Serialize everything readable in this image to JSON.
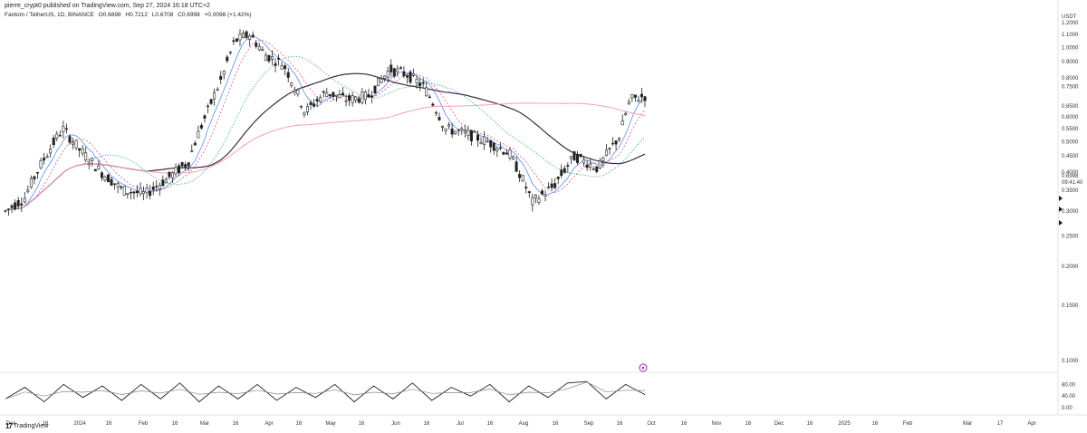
{
  "header": {
    "published_line": "pierre_crypt0 published on TradingView.com, Sep 27, 2024 16:18 UTC+2",
    "symbol": "Fantom / TetherUS, 1D, BINANCE",
    "open": "O0.6898",
    "high": "H0.7212",
    "low": "L0.6708",
    "close": "C0.6998",
    "change": "+0.0098 (+1.42%)"
  },
  "price_axis": {
    "currency": "USDT",
    "current_price": "0.6998",
    "countdown": "09:41:40",
    "ticks": [
      "1.2000",
      "1.1000",
      "1.0000",
      "0.9000",
      "0.8000",
      "0.7500",
      "0.6500",
      "0.6000",
      "0.5500",
      "0.5000",
      "0.4500",
      "0.4000",
      "0.3500",
      "0.3000",
      "0.2500",
      "0.2000",
      "0.1500",
      "0.1000"
    ]
  },
  "oscillator_axis": {
    "ticks": [
      "80.00",
      "40.00",
      "0.00"
    ]
  },
  "time_axis": {
    "labels": [
      "Dec",
      "16",
      "2024",
      "16",
      "Feb",
      "16",
      "Mar",
      "16",
      "Apr",
      "16",
      "May",
      "16",
      "Jun",
      "16",
      "Jul",
      "16",
      "Aug",
      "16",
      "Sep",
      "16",
      "Oct",
      "16",
      "Nov",
      "16",
      "Dec",
      "16",
      "2025",
      "16",
      "Feb",
      "Mar",
      "17",
      "Apr"
    ]
  },
  "chart_data": {
    "type": "line",
    "title": "",
    "xlabel": "",
    "ylabel": "",
    "ylim": [
      0.08,
      1.25
    ],
    "x": [
      "2023-12-01",
      "2023-12-10",
      "2023-12-20",
      "2023-12-28",
      "2024-01-05",
      "2024-01-15",
      "2024-01-25",
      "2024-02-05",
      "2024-02-15",
      "2024-02-25",
      "2024-03-05",
      "2024-03-12",
      "2024-03-18",
      "2024-03-25",
      "2024-04-01",
      "2024-04-10",
      "2024-04-20",
      "2024-04-30",
      "2024-05-10",
      "2024-05-20",
      "2024-05-30",
      "2024-06-07",
      "2024-06-15",
      "2024-06-25",
      "2024-07-05",
      "2024-07-15",
      "2024-07-25",
      "2024-08-05",
      "2024-08-15",
      "2024-08-25",
      "2024-09-05",
      "2024-09-15",
      "2024-09-20",
      "2024-09-27"
    ],
    "series": [
      {
        "values": [
          0.3,
          0.33,
          0.45,
          0.55,
          0.47,
          0.4,
          0.35,
          0.34,
          0.38,
          0.43,
          0.62,
          0.8,
          1.05,
          1.1,
          0.95,
          0.88,
          0.62,
          0.72,
          0.68,
          0.7,
          0.85,
          0.82,
          0.75,
          0.55,
          0.53,
          0.5,
          0.46,
          0.32,
          0.36,
          0.45,
          0.41,
          0.52,
          0.68,
          0.7
        ]
      }
    ],
    "oscillator": {
      "ylim": [
        0,
        100
      ],
      "values": [
        30,
        70,
        20,
        80,
        35,
        75,
        25,
        80,
        30,
        85,
        20,
        75,
        30,
        80,
        25,
        70,
        35,
        80,
        20,
        75,
        30,
        85,
        25,
        70,
        40,
        80,
        20,
        75,
        35,
        85,
        90,
        30,
        80,
        45
      ]
    },
    "colors": {
      "candle": "#222222",
      "ma_blue": "#5b8def",
      "ma_pink_dash": "#e05580",
      "ema_teal_dot": "#1e9f8a",
      "ma_dark": "#3a2c4a",
      "ma_pink_long": "#f4a0b5"
    }
  },
  "branding": {
    "logo_text": "TradingView"
  }
}
